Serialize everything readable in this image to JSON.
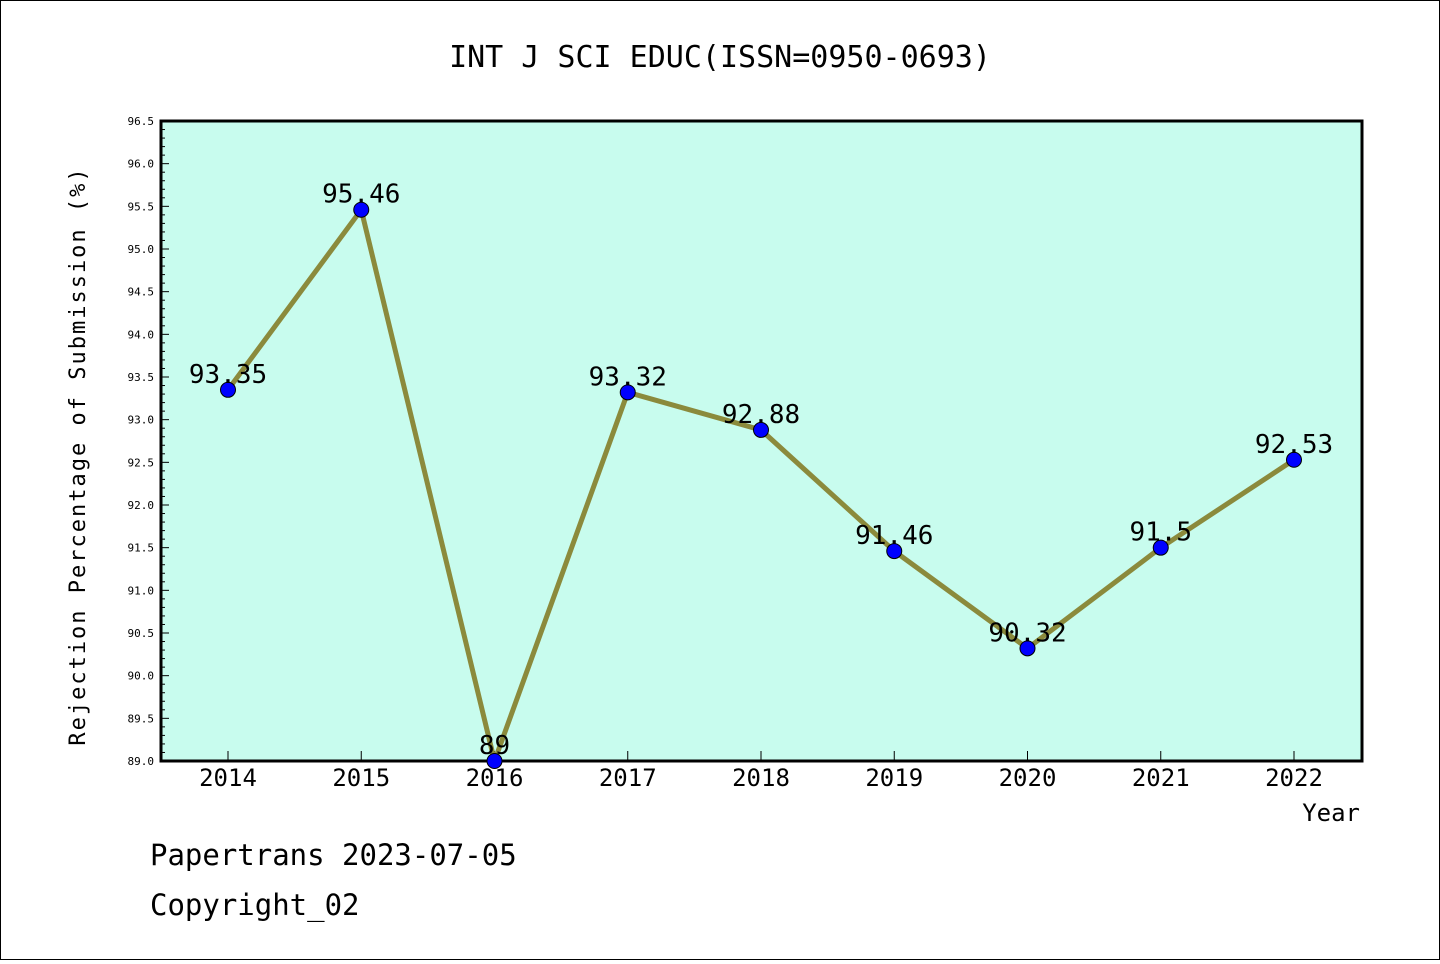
{
  "chart_data": {
    "type": "line",
    "title": "INT J SCI EDUC(ISSN=0950-0693)",
    "xlabel": "Year",
    "ylabel": "Rejection Percentage of Submission (%)",
    "categories": [
      "2014",
      "2015",
      "2016",
      "2017",
      "2018",
      "2019",
      "2020",
      "2021",
      "2022"
    ],
    "series": [
      {
        "values": [
          93.35,
          95.46,
          89,
          93.32,
          92.88,
          91.46,
          90.32,
          91.5,
          92.53
        ],
        "labels": [
          "93.35",
          "95.46",
          "89",
          "93.32",
          "92.88",
          "91.46",
          "90.32",
          "91.5",
          "92.53"
        ]
      }
    ],
    "ylim": [
      89.0,
      96.5
    ],
    "yticks": [
      "89.0",
      "89.5",
      "90.0",
      "90.5",
      "91.0",
      "91.5",
      "92.0",
      "92.5",
      "93.0",
      "93.5",
      "94.0",
      "94.5",
      "95.0",
      "95.5",
      "96.0",
      "96.5"
    ],
    "grid": false,
    "legend": "none",
    "colors": {
      "plot_background": "#c8fcee",
      "line": "#8b8a3c",
      "marker": "#0000ff"
    }
  },
  "footer": {
    "line1": "Papertrans 2023-07-05",
    "line2": "Copyright_02"
  }
}
